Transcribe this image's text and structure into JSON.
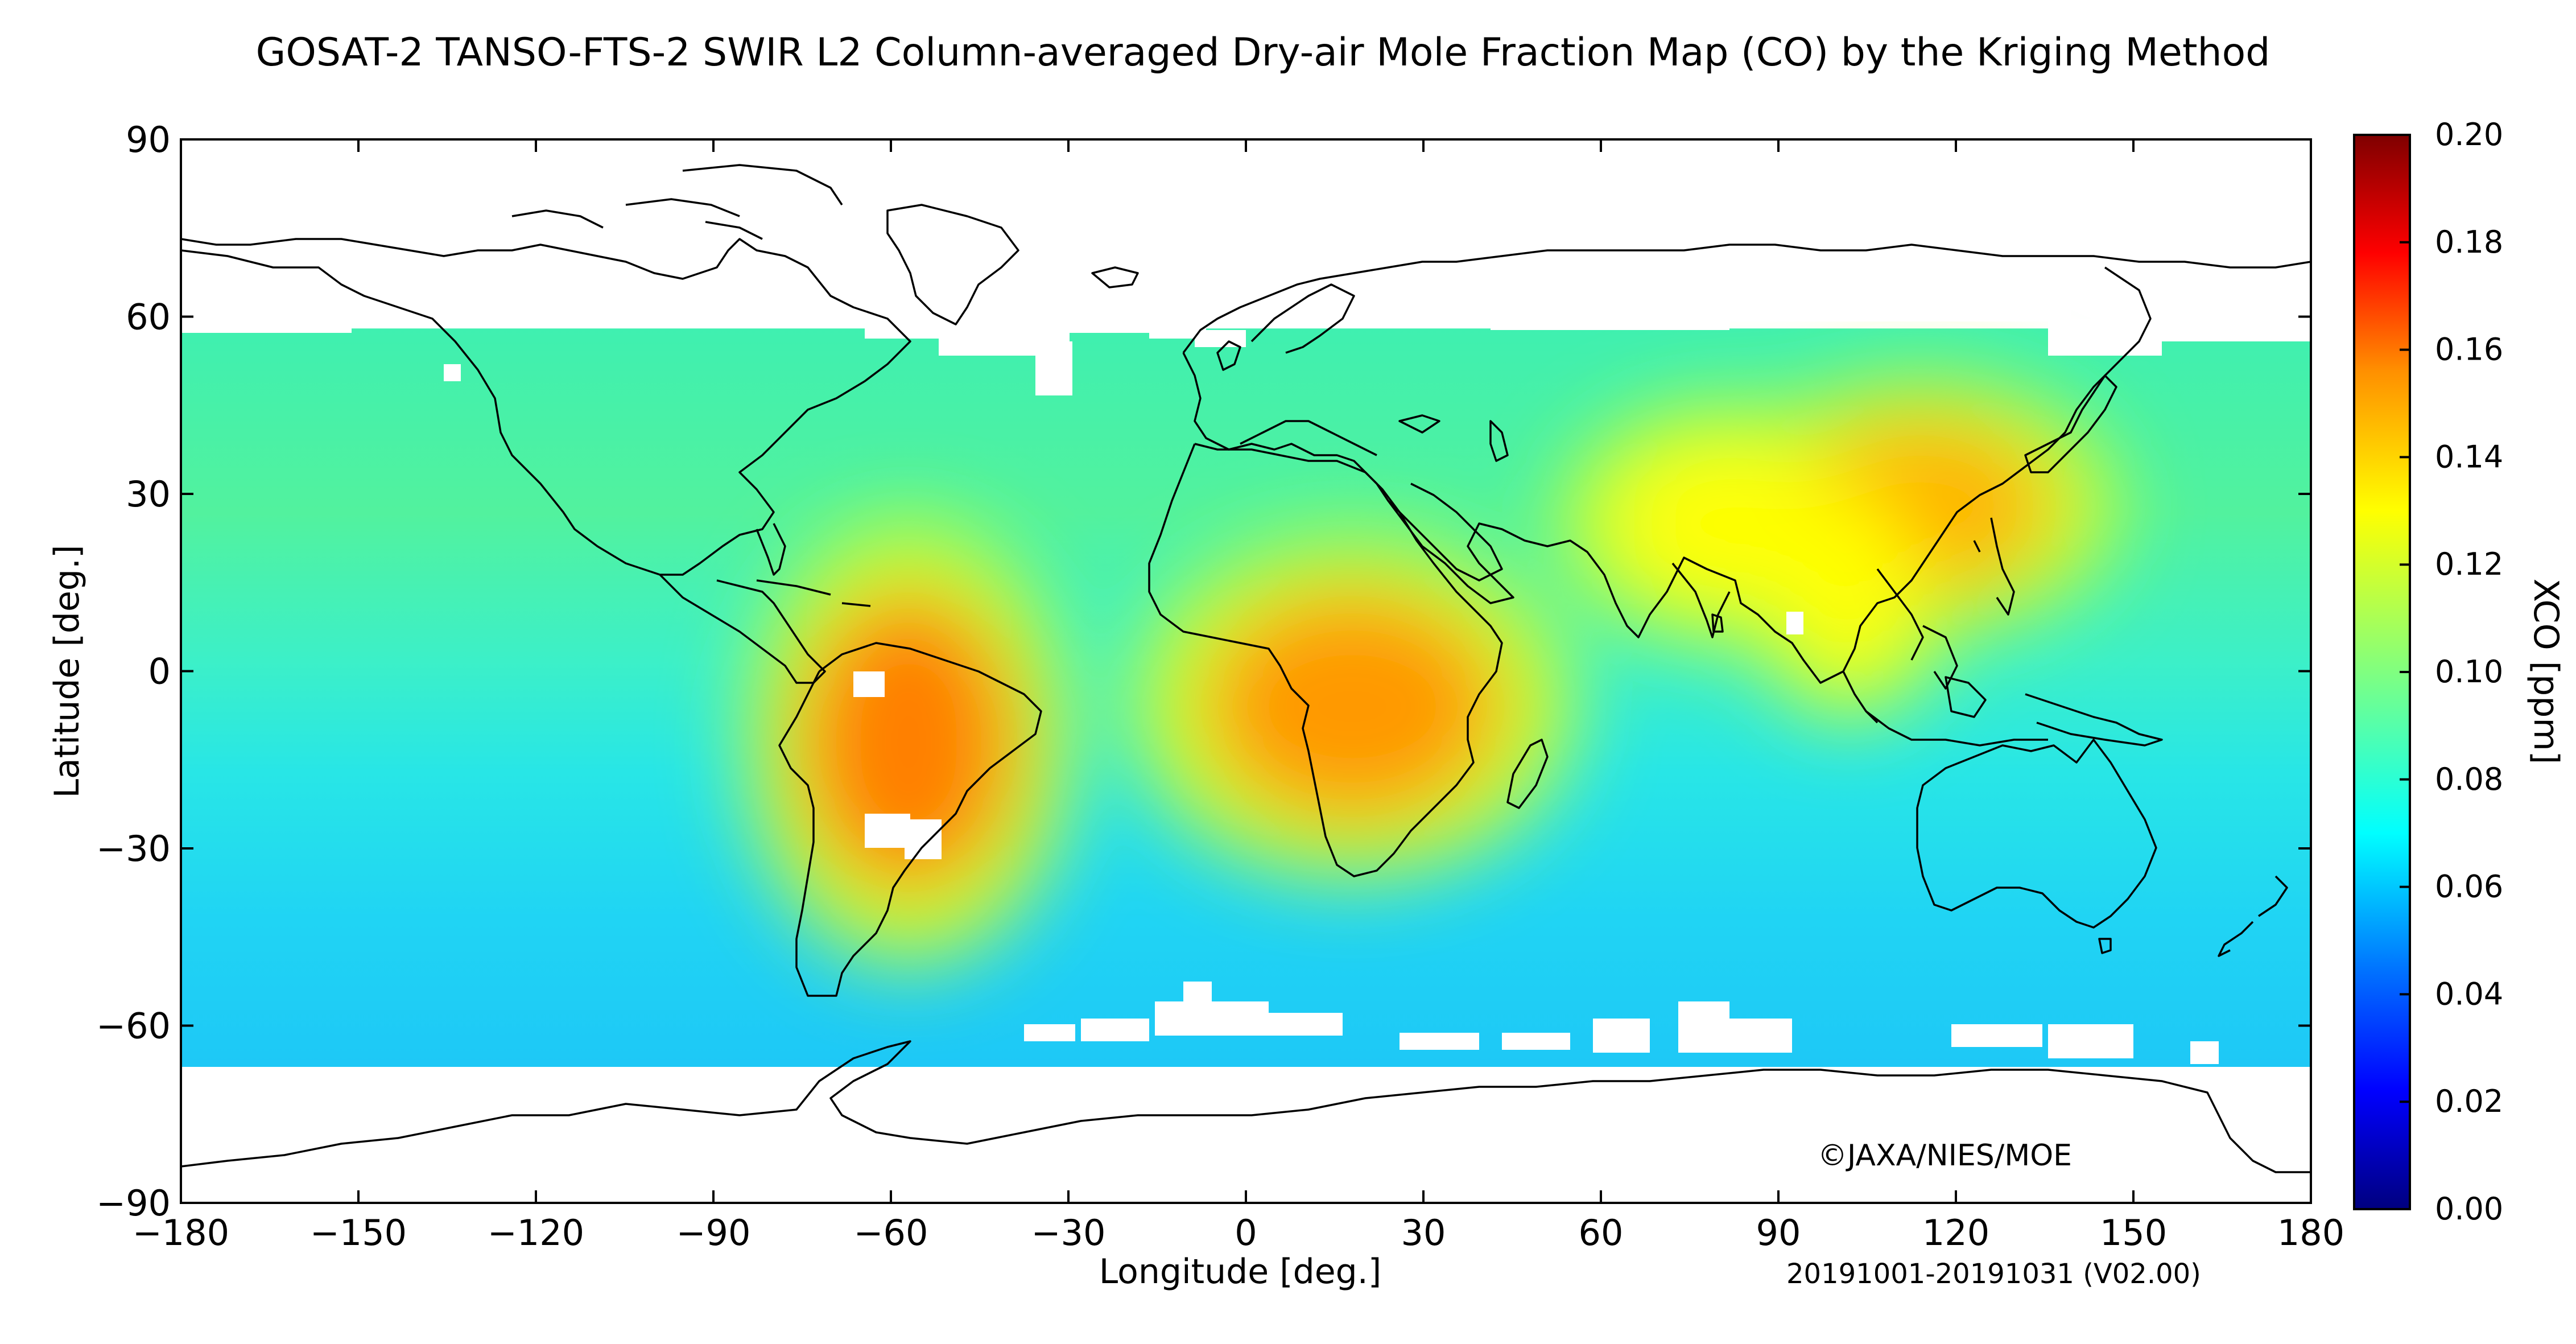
{
  "title": "GOSAT-2 TANSO-FTS-2 SWIR L2 Column-averaged Dry-air Mole Fraction Map (CO) by the Kriging Method",
  "map": {
    "lon_range": [
      -180,
      180
    ],
    "lat_range": [
      -90,
      90
    ],
    "x_ticks": [
      "−180",
      "−150",
      "−120",
      "−90",
      "−60",
      "−30",
      "0",
      "30",
      "60",
      "90",
      "120",
      "150",
      "180"
    ],
    "y_ticks": [
      "90",
      "60",
      "30",
      "0",
      "−30",
      "−60",
      "−90"
    ],
    "xlabel": "Longitude [deg.]",
    "ylabel": "Latitude [deg.]",
    "copyright": "©JAXA/NIES/MOE",
    "period": "20191001-20191031 (V02.00)",
    "coverage_lat": [
      -67,
      58
    ],
    "hotspots": [
      {
        "region": "South America (Brazil)",
        "lon": -57,
        "lat": -12,
        "value": 0.15
      },
      {
        "region": "Central Africa",
        "lon": 18,
        "lat": -6,
        "value": 0.145
      },
      {
        "region": "Eastern China",
        "lon": 114,
        "lat": 28,
        "value": 0.14
      },
      {
        "region": "India",
        "lon": 82,
        "lat": 25,
        "value": 0.125
      },
      {
        "region": "Indochina",
        "lon": 102,
        "lat": 15,
        "value": 0.125
      }
    ]
  },
  "colorbar": {
    "label": "XCO [ppm]",
    "min": 0.0,
    "max": 0.2,
    "ticks": [
      "0.20",
      "0.18",
      "0.16",
      "0.14",
      "0.12",
      "0.10",
      "0.08",
      "0.06",
      "0.04",
      "0.02",
      "0.00"
    ],
    "colormap": [
      "#00007f",
      "#0000ff",
      "#0080ff",
      "#00ffff",
      "#80ff80",
      "#ffff00",
      "#ff8000",
      "#ff0000",
      "#7f0000"
    ]
  }
}
